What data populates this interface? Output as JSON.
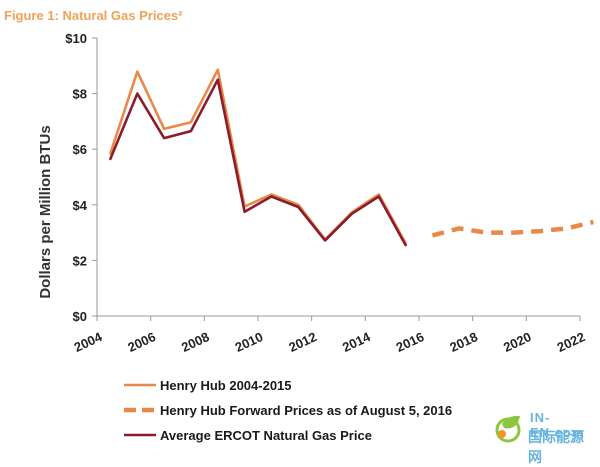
{
  "chart_data": {
    "type": "line",
    "title": "Figure 1: Natural Gas Prices²",
    "xlabel": "",
    "ylabel": "Dollars per Million BTUs",
    "xlim": [
      2004,
      2022
    ],
    "ylim": [
      0,
      10
    ],
    "x_ticks": [
      2004,
      2006,
      2008,
      2010,
      2012,
      2014,
      2016,
      2018,
      2020,
      2022
    ],
    "y_ticks": [
      0,
      2,
      4,
      6,
      8,
      10
    ],
    "y_tick_labels": [
      "$0",
      "$2",
      "$4",
      "$6",
      "$8",
      "$10"
    ],
    "grid": false,
    "legend_position": "bottom",
    "series": [
      {
        "name": "Henry Hub 2004-2015",
        "color": "#e8894a",
        "style": "solid",
        "x": [
          2004.5,
          2005.5,
          2006.5,
          2007.5,
          2008.5,
          2009.5,
          2010.5,
          2011.5,
          2012.5,
          2013.5,
          2014.5,
          2015.5
        ],
        "y": [
          5.85,
          8.79,
          6.73,
          6.97,
          8.86,
          3.94,
          4.37,
          4.0,
          2.75,
          3.73,
          4.37,
          2.62
        ]
      },
      {
        "name": "Henry Hub Forward Prices as of August 5, 2016",
        "color": "#e8894a",
        "style": "dashed",
        "x": [
          2016.5,
          2017.5,
          2018.5,
          2019.5,
          2020.5,
          2021.5,
          2022.5
        ],
        "y": [
          2.9,
          3.15,
          3.0,
          3.0,
          3.05,
          3.15,
          3.38
        ]
      },
      {
        "name": "Average ERCOT Natural Gas Price",
        "color": "#8b1c2b",
        "style": "solid",
        "x": [
          2004.5,
          2005.5,
          2006.5,
          2007.5,
          2008.5,
          2009.5,
          2010.5,
          2011.5,
          2012.5,
          2013.5,
          2014.5,
          2015.5
        ],
        "y": [
          5.65,
          8.0,
          6.4,
          6.65,
          8.5,
          3.75,
          4.3,
          3.92,
          2.72,
          3.68,
          4.3,
          2.55
        ]
      }
    ]
  },
  "watermark": {
    "en": "IN-EN.com",
    "cn": "国际能源网"
  }
}
